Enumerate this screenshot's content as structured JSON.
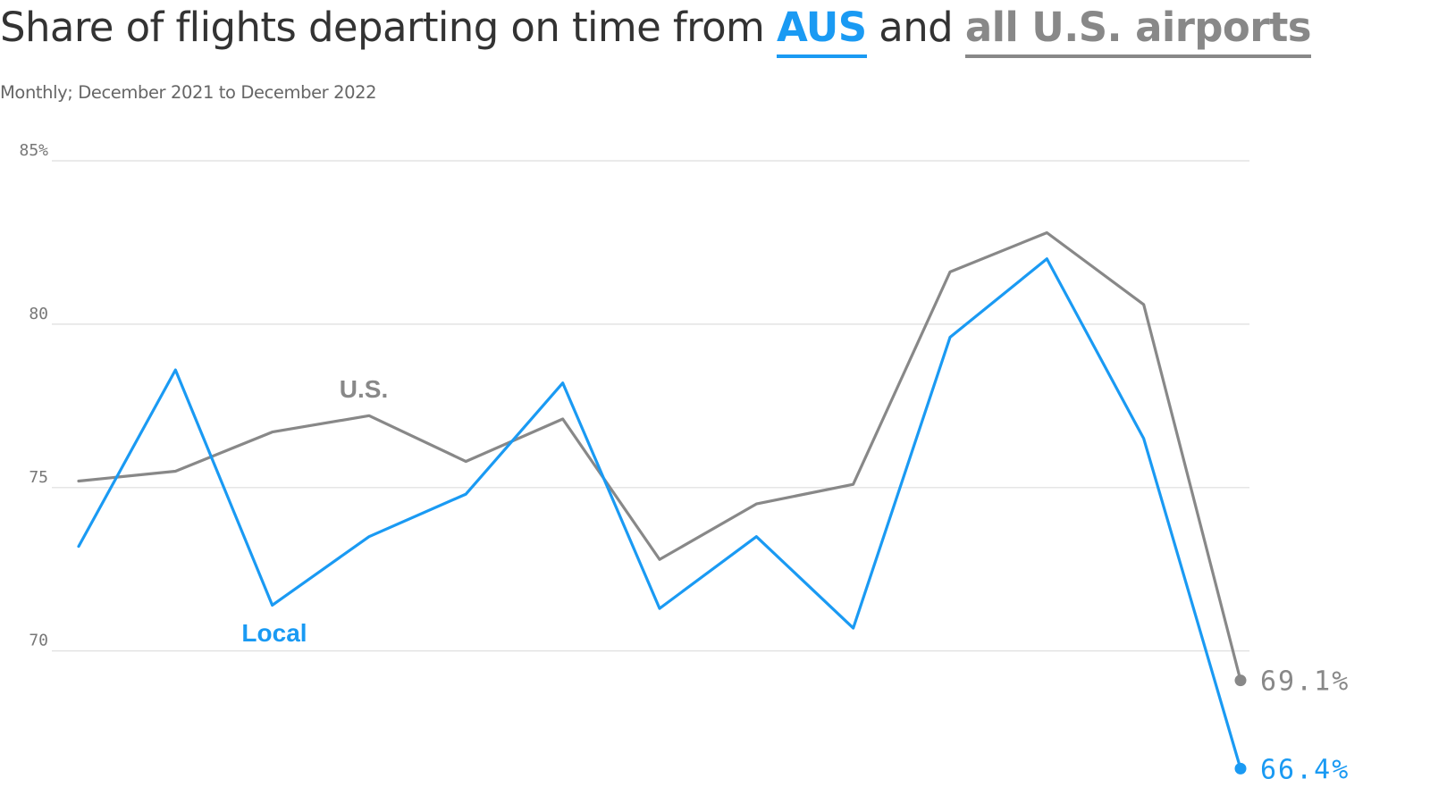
{
  "header": {
    "title_pre": "Share of flights departing on time from ",
    "title_highlight_a": "AUS",
    "title_mid": " and ",
    "title_highlight_b": "all U.S. airports",
    "subtitle": "Monthly; December 2021 to December 2022"
  },
  "colors": {
    "local": "#1a9af3",
    "us": "#888888",
    "grid": "#dddddd",
    "text": "#333333"
  },
  "chart_data": {
    "type": "line",
    "x_count": 13,
    "ylim": [
      66,
      85
    ],
    "yticks": [
      {
        "value": 85,
        "label": "85%"
      },
      {
        "value": 80,
        "label": "80"
      },
      {
        "value": 75,
        "label": "75"
      },
      {
        "value": 70,
        "label": "70"
      }
    ],
    "grid": true,
    "series": [
      {
        "key": "us",
        "name": "U.S.",
        "values": [
          75.2,
          75.5,
          76.7,
          77.2,
          75.8,
          77.1,
          72.8,
          74.5,
          75.1,
          81.6,
          82.8,
          80.6,
          69.1
        ],
        "end_label": "69.1%"
      },
      {
        "key": "local",
        "name": "Local",
        "values": [
          73.2,
          78.6,
          71.4,
          73.5,
          74.8,
          78.2,
          71.3,
          73.5,
          70.7,
          79.6,
          82.0,
          76.5,
          66.4
        ],
        "end_label": "66.4%"
      }
    ]
  }
}
